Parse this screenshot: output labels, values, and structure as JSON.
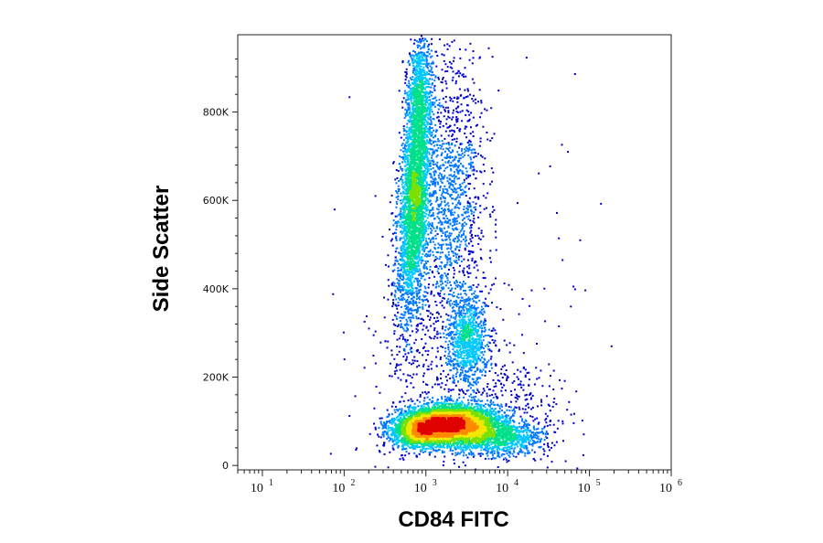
{
  "chart_data": {
    "type": "scatter",
    "subtype": "flow-cytometry-density-dot-plot",
    "xlabel": "CD84 FITC",
    "ylabel": "Side Scatter",
    "x_scale": "log",
    "xlim": [
      5,
      1000000
    ],
    "ylim": [
      -10000,
      975000
    ],
    "x_ticks": [
      {
        "value": 10,
        "base": "10",
        "exp": "1"
      },
      {
        "value": 100,
        "base": "10",
        "exp": "2"
      },
      {
        "value": 1000,
        "base": "10",
        "exp": "3"
      },
      {
        "value": 10000,
        "base": "10",
        "exp": "4"
      },
      {
        "value": 100000,
        "base": "10",
        "exp": "5"
      },
      {
        "value": 1000000,
        "base": "10",
        "exp": "6"
      }
    ],
    "y_ticks": [
      {
        "value": 0,
        "label": "0"
      },
      {
        "value": 200000,
        "label": "200K"
      },
      {
        "value": 400000,
        "label": "400K"
      },
      {
        "value": 600000,
        "label": "600K"
      },
      {
        "value": 800000,
        "label": "800K"
      }
    ],
    "density_colormap": [
      "#0000cc",
      "#0077ff",
      "#00c8ff",
      "#00e08a",
      "#7ae000",
      "#f0e800",
      "#ff8a00",
      "#e00000"
    ],
    "populations": [
      {
        "cx": 700,
        "cy": 600000,
        "sdlog": 0.09,
        "sdy": 140000,
        "n": 3200,
        "tilt": 0.45
      },
      {
        "cx": 800,
        "cy": 850000,
        "sdlog": 0.07,
        "sdy": 60000,
        "n": 600,
        "tilt": 0.2
      },
      {
        "cx": 2000,
        "cy": 95000,
        "sdlog": 0.28,
        "sdy": 22000,
        "n": 4200,
        "tilt": 0
      },
      {
        "cx": 800,
        "cy": 80000,
        "sdlog": 0.18,
        "sdy": 20000,
        "n": 1500,
        "tilt": 0
      },
      {
        "cx": 3200,
        "cy": 290000,
        "sdlog": 0.12,
        "sdy": 55000,
        "n": 900,
        "tilt": 0
      },
      {
        "cx": 1900,
        "cy": 600000,
        "sdlog": 0.22,
        "sdy": 170000,
        "n": 1400,
        "tilt": 0
      },
      {
        "cx": 7000,
        "cy": 65000,
        "sdlog": 0.3,
        "sdy": 20000,
        "n": 1000,
        "tilt": 0
      },
      {
        "cx": 11000,
        "cy": 130000,
        "sdlog": 0.35,
        "sdy": 60000,
        "n": 350,
        "tilt": 0
      },
      {
        "cx": 1200,
        "cy": 200000,
        "sdlog": 0.4,
        "sdy": 120000,
        "n": 300,
        "tilt": 0
      },
      {
        "cx": 3000,
        "cy": 400000,
        "sdlog": 0.7,
        "sdy": 250000,
        "n": 150,
        "tilt": 0
      }
    ]
  }
}
